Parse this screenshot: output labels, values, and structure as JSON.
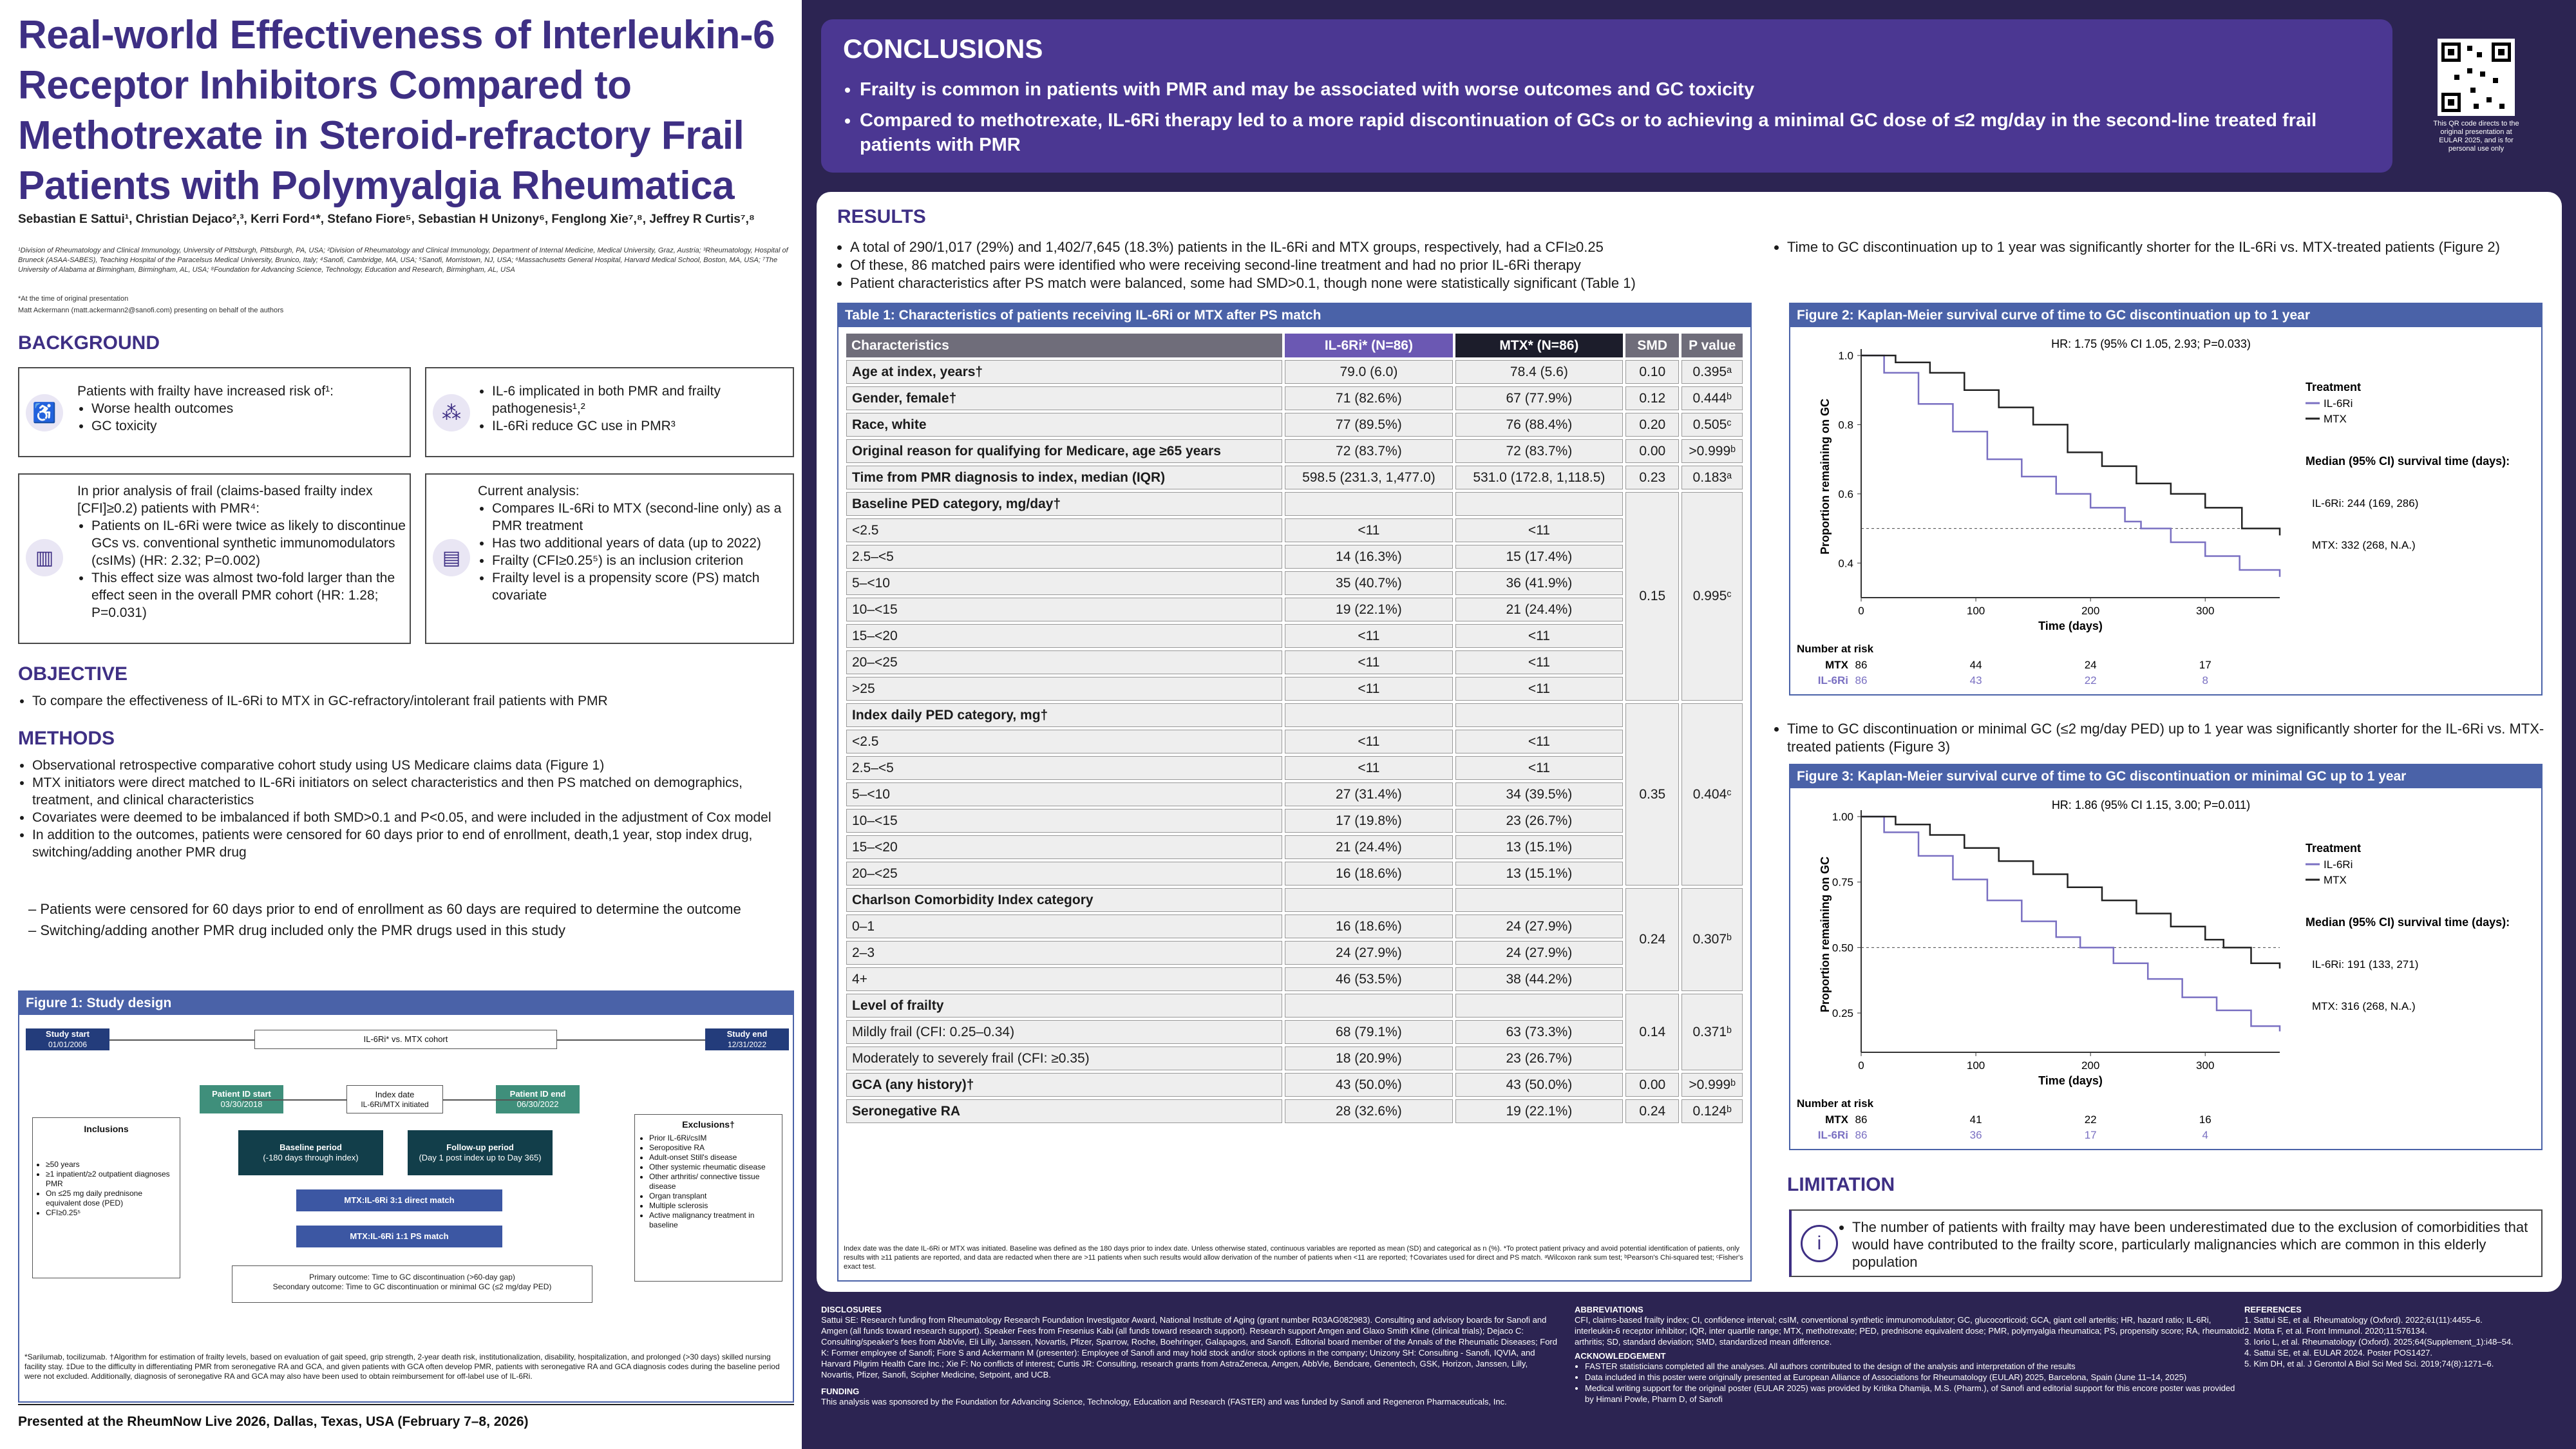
{
  "poster": {
    "title": "Real-world Effectiveness of Interleukin-6 Receptor Inhibitors Compared to Methotrexate in Steroid-refractory Frail Patients with Polymyalgia Rheumatica",
    "authors": "Sebastian E Sattui¹, Christian Dejaco²,³, Kerri Ford⁴*, Stefano Fiore⁵, Sebastian H Unizony⁶, Fenglong Xie⁷,⁸, Jeffrey R Curtis⁷,⁸",
    "affiliations": "¹Division of Rheumatology and Clinical Immunology, University of Pittsburgh, Pittsburgh, PA, USA; ²Division of Rheumatology and Clinical Immunology, Department of Internal Medicine, Medical University, Graz, Austria; ³Rheumatology, Hospital of Bruneck (ASAA-SABES), Teaching Hospital of the Paracelsus Medical University, Brunico, Italy; ⁴Sanofi, Cambridge, MA, USA; ⁵Sanofi, Morristown, NJ, USA; ⁶Massachusetts General Hospital, Harvard Medical School, Boston, MA, USA; ⁷The University of Alabama at Birmingham, Birmingham, AL, USA; ⁸Foundation for Advancing Science, Technology, Education and Research, Birmingham, AL, USA",
    "time_note": "*At the time of original presentation",
    "presenter_note": "Matt Ackermann (matt.ackermann2@sanofi.com) presenting on behalf of the authors",
    "presented_at": "Presented at the RheumNow Live 2026, Dallas, Texas, USA (February 7–8, 2026)",
    "qr_note": "This QR code directs to the original presentation at EULAR 2025, and is for personal use only"
  },
  "background": {
    "heading": "BACKGROUND",
    "box1_intro": "Patients with frailty have increased risk of¹:",
    "box1_items": [
      "Worse health outcomes",
      "GC toxicity"
    ],
    "box2_items": [
      "IL-6 implicated in both PMR and frailty pathogenesis¹,²",
      "IL-6Ri reduce GC use in PMR³"
    ],
    "box3_intro": "In prior analysis of frail (claims-based frailty index [CFI]≥0.2) patients with PMR⁴:",
    "box3_items": [
      "Patients on IL-6Ri were twice as likely to discontinue GCs vs. conventional synthetic immunomodulators (csIMs) (HR: 2.32; P=0.002)",
      "This effect size was almost two-fold larger than the effect seen in the overall PMR cohort (HR: 1.28; P=0.031)"
    ],
    "box4_intro": "Current analysis:",
    "box4_items": [
      "Compares IL-6Ri to MTX (second-line only) as a PMR treatment",
      "Has two additional years of data (up to 2022)",
      "Frailty (CFI≥0.25⁵) is an inclusion criterion",
      "Frailty level is a propensity score (PS) match covariate"
    ]
  },
  "objective": {
    "heading": "OBJECTIVE",
    "text": "To compare the effectiveness of IL-6Ri to MTX in GC-refractory/intolerant frail patients with PMR"
  },
  "methods": {
    "heading": "METHODS",
    "items": [
      "Observational retrospective comparative cohort study using US Medicare claims data (Figure 1)",
      "MTX initiators were direct matched to IL-6Ri initiators on select characteristics and then PS matched on demographics, treatment, and clinical characteristics",
      "Covariates were deemed to be imbalanced if both SMD>0.1 and P<0.05, and were included in the adjustment of Cox model",
      "In addition to the outcomes, patients were censored for 60 days prior to end of enrollment, death,1 year, stop index drug, switching/adding another PMR drug"
    ],
    "subitems": [
      "Patients were censored for 60 days prior to end of enrollment as 60 days are required to determine the outcome",
      "Switching/adding another PMR drug included only the PMR drugs used in this study"
    ]
  },
  "fig1": {
    "title": "Figure 1: Study design",
    "study_start": "Study start",
    "study_start_date": "01/01/2006",
    "study_end": "Study end",
    "study_end_date": "12/31/2022",
    "cohort": "IL-6Ri* vs. MTX cohort",
    "pid_start": "Patient ID start",
    "pid_start_date": "03/30/2018",
    "pid_end": "Patient ID end",
    "pid_end_date": "06/30/2022",
    "index": "Index date",
    "index_sub": "IL-6Ri/MTX initiated",
    "baseline": "Baseline period",
    "baseline_sub": "(-180 days through index)",
    "followup": "Follow-up period",
    "followup_sub": "(Day 1 post index up to Day 365)",
    "direct": "MTX:IL-6Ri 3:1 direct match",
    "ps": "MTX:IL-6Ri 1:1 PS match",
    "incl_title": "Inclusions",
    "incl_items": [
      "≥50 years",
      "≥1 inpatient/≥2 outpatient diagnoses PMR",
      "On ≤25 mg daily prednisone equivalent dose (PED)",
      "CFI≥0.25⁵"
    ],
    "excl_title": "Exclusions†",
    "excl_items": [
      "Prior IL-6Ri/csIM",
      "Seropositive RA",
      "Adult-onset Still's disease",
      "Other systemic rheumatic disease",
      "Other arthritis/ connective tissue disease",
      "Organ transplant",
      "Multiple sclerosis",
      "Active malignancy treatment in baseline"
    ],
    "primary": "Primary outcome: Time to GC discontinuation (>60-day gap)",
    "secondary": "Secondary outcome: Time to GC discontinuation or minimal GC (≤2 mg/day PED)",
    "footnote": "*Sarilumab, tocilizumab. †Algorithm for estimation of frailty levels, based on evaluation of gait speed, grip strength, 2-year death risk, institutionalization, disability, hospitalization, and prolonged (>30 days) skilled nursing facility stay. ‡Due to the difficulty in differentiating PMR from seronegative RA and GCA, and given patients with GCA often develop PMR, patients with seronegative RA and GCA diagnosis codes during the baseline period were not excluded. Additionally, diagnosis of seronegative RA and GCA may also have been used to obtain reimbursement for off-label use of IL-6Ri."
  },
  "conclusions": {
    "heading": "CONCLUSIONS",
    "items": [
      "Frailty is common in patients with PMR and may be associated with worse outcomes and GC toxicity",
      "Compared to methotrexate, IL-6Ri therapy led to a more rapid discontinuation of GCs or to achieving a minimal GC dose of ≤2 mg/day in the second-line treated frail patients with PMR"
    ]
  },
  "results": {
    "heading": "RESULTS",
    "items": [
      "A total of 290/1,017 (29%) and 1,402/7,645 (18.3%) patients in the IL-6Ri and MTX groups, respectively, had a CFI≥0.25",
      "Of these, 86 matched pairs were identified who were receiving second-line treatment and had no prior IL-6Ri therapy",
      "Patient characteristics after PS match were balanced, some had SMD>0.1, though none were statistically significant (Table 1)"
    ],
    "fig2_bullet": "Time to GC discontinuation up to 1 year was significantly shorter for the IL-6Ri vs. MTX-treated patients (Figure 2)",
    "fig3_bullet": "Time to GC discontinuation or minimal GC (≤2 mg/day PED) up to 1 year was significantly shorter for the IL-6Ri vs. MTX-treated patients (Figure 3)"
  },
  "table1": {
    "title": "Table 1: Characteristics of patients receiving IL-6Ri or MTX after PS match",
    "headers": [
      "Characteristics",
      "IL-6Ri* (N=86)",
      "MTX* (N=86)",
      "SMD",
      "P value"
    ],
    "footnote": "Index date was the date IL-6Ri or MTX was initiated. Baseline was defined as the 180 days prior to index date. Unless otherwise stated, continuous variables are reported as mean (SD) and categorical as n (%). *To protect patient privacy and avoid potential identification of patients, only results with ≥11 patients are reported, and data are redacted when there are >11 patients when such results would allow derivation of the number of patients when <11 are reported; †Covariates used for direct and PS match. ᵃWilcoxon rank sum test; ᵇPearson's Chi-squared test; ᶜFisher's exact test.",
    "rows": [
      {
        "label": "Age at index, years†",
        "a": "79.0 (6.0)",
        "b": "78.4 (5.6)",
        "smd": "0.10",
        "p": "0.395ᵃ"
      },
      {
        "label": "Gender, female†",
        "a": "71 (82.6%)",
        "b": "67 (77.9%)",
        "smd": "0.12",
        "p": "0.444ᵇ"
      },
      {
        "label": "Race, white",
        "a": "77 (89.5%)",
        "b": "76 (88.4%)",
        "smd": "0.20",
        "p": "0.505ᶜ"
      },
      {
        "label": "Original reason for qualifying for Medicare, age ≥65 years",
        "a": "72 (83.7%)",
        "b": "72 (83.7%)",
        "smd": "0.00",
        "p": ">0.999ᵇ"
      },
      {
        "label": "Time from PMR diagnosis to index, median (IQR)",
        "a": "598.5 (231.3, 1,477.0)",
        "b": "531.0 (172.8, 1,118.5)",
        "smd": "0.23",
        "p": "0.183ᵃ"
      }
    ],
    "ped_title": "Baseline PED category, mg/day†",
    "ped_rows": [
      {
        "label": "<2.5",
        "a": "<11",
        "b": "<11"
      },
      {
        "label": "2.5–<5",
        "a": "14 (16.3%)",
        "b": "15 (17.4%)"
      },
      {
        "label": "5–<10",
        "a": "35 (40.7%)",
        "b": "36 (41.9%)"
      },
      {
        "label": "10–<15",
        "a": "19 (22.1%)",
        "b": "21 (24.4%)"
      },
      {
        "label": "15–<20",
        "a": "<11",
        "b": "<11"
      },
      {
        "label": "20–<25",
        "a": "<11",
        "b": "<11"
      },
      {
        "label": ">25",
        "a": "<11",
        "b": "<11"
      }
    ],
    "ped_smd": "0.15",
    "ped_p": "0.995ᶜ",
    "idx_title": "Index daily PED category, mg†",
    "idx_rows": [
      {
        "label": "<2.5",
        "a": "<11",
        "b": "<11"
      },
      {
        "label": "2.5–<5",
        "a": "<11",
        "b": "<11"
      },
      {
        "label": "5–<10",
        "a": "27 (31.4%)",
        "b": "34 (39.5%)"
      },
      {
        "label": "10–<15",
        "a": "17 (19.8%)",
        "b": "23 (26.7%)"
      },
      {
        "label": "15–<20",
        "a": "21 (24.4%)",
        "b": "13 (15.1%)"
      },
      {
        "label": "20–<25",
        "a": "16 (18.6%)",
        "b": "13 (15.1%)"
      }
    ],
    "idx_smd": "0.35",
    "idx_p": "0.404ᶜ",
    "cci_title": "Charlson Comorbidity Index category",
    "cci_rows": [
      {
        "label": "0–1",
        "a": "16 (18.6%)",
        "b": "24 (27.9%)"
      },
      {
        "label": "2–3",
        "a": "24 (27.9%)",
        "b": "24 (27.9%)"
      },
      {
        "label": "4+",
        "a": "46 (53.5%)",
        "b": "38 (44.2%)"
      }
    ],
    "cci_smd": "0.24",
    "cci_p": "0.307ᵇ",
    "frail_title": "Level of frailty",
    "frail_rows": [
      {
        "label": "Mildly frail (CFI: 0.25–0.34)",
        "a": "68 (79.1%)",
        "b": "63 (73.3%)"
      },
      {
        "label": "Moderately to severely frail (CFI: ≥0.35)",
        "a": "18 (20.9%)",
        "b": "23 (26.7%)"
      }
    ],
    "frail_smd": "0.14",
    "frail_p": "0.371ᵇ",
    "end_rows": [
      {
        "label": "GCA (any history)†",
        "a": "43 (50.0%)",
        "b": "43 (50.0%)",
        "smd": "0.00",
        "p": ">0.999ᵇ"
      },
      {
        "label": "Seronegative RA",
        "a": "28 (32.6%)",
        "b": "19 (22.1%)",
        "smd": "0.24",
        "p": "0.124ᵇ"
      }
    ]
  },
  "chart_data": [
    {
      "type": "line",
      "title": "Figure 2: Kaplan-Meier survival curve of time to GC discontinuation up to 1 year",
      "hr": "HR: 1.75 (95% CI 1.05, 2.93; P=0.033)",
      "xlabel": "Time (days)",
      "ylabel": "Proportion remaining on GC",
      "xlim": [
        0,
        365
      ],
      "ylim": [
        0.3,
        1.0
      ],
      "xticks": [
        "0",
        "100",
        "200",
        "300"
      ],
      "yticks": [
        "1.0",
        "0.8",
        "0.6",
        "0.4"
      ],
      "legend_title": "Treatment",
      "legend": [
        "IL-6Ri",
        "MTX"
      ],
      "median_title": "Median (95% CI) survival time (days):",
      "median_il6": "IL-6Ri: 244 (169, 286)",
      "median_mtx": "MTX: 332 (268, N.A.)",
      "series": [
        {
          "name": "IL-6Ri",
          "x": [
            0,
            20,
            50,
            80,
            110,
            140,
            170,
            200,
            230,
            244,
            270,
            300,
            330,
            365
          ],
          "values": [
            1.0,
            0.95,
            0.86,
            0.78,
            0.7,
            0.65,
            0.6,
            0.56,
            0.52,
            0.5,
            0.46,
            0.42,
            0.38,
            0.36
          ]
        },
        {
          "name": "MTX",
          "x": [
            0,
            30,
            60,
            90,
            120,
            150,
            180,
            210,
            240,
            270,
            300,
            332,
            365
          ],
          "values": [
            1.0,
            0.98,
            0.95,
            0.9,
            0.85,
            0.8,
            0.72,
            0.68,
            0.63,
            0.6,
            0.56,
            0.5,
            0.48
          ]
        }
      ],
      "risk_title": "Number at risk",
      "risk_mtx": [
        "86",
        "44",
        "24",
        "17"
      ],
      "risk_il6": [
        "86",
        "43",
        "22",
        "8"
      ]
    },
    {
      "type": "line",
      "title": "Figure 3: Kaplan-Meier survival curve of time to GC discontinuation or minimal GC up to 1 year",
      "hr": "HR: 1.86 (95% CI 1.15, 3.00; P=0.011)",
      "xlabel": "Time (days)",
      "ylabel": "Proportion remaining on GC",
      "xlim": [
        0,
        365
      ],
      "ylim": [
        0.1,
        1.0
      ],
      "xticks": [
        "0",
        "100",
        "200",
        "300"
      ],
      "yticks": [
        "1.00",
        "0.75",
        "0.50",
        "0.25"
      ],
      "legend_title": "Treatment",
      "legend": [
        "IL-6Ri",
        "MTX"
      ],
      "median_title": "Median (95% CI) survival time (days):",
      "median_il6": "IL-6Ri: 191 (133, 271)",
      "median_mtx": "MTX: 316 (268, N.A.)",
      "series": [
        {
          "name": "IL-6Ri",
          "x": [
            0,
            20,
            50,
            80,
            110,
            140,
            170,
            191,
            220,
            250,
            280,
            310,
            340,
            365
          ],
          "values": [
            1.0,
            0.94,
            0.85,
            0.76,
            0.68,
            0.6,
            0.54,
            0.5,
            0.44,
            0.38,
            0.31,
            0.26,
            0.2,
            0.18
          ]
        },
        {
          "name": "MTX",
          "x": [
            0,
            30,
            60,
            90,
            120,
            150,
            180,
            210,
            240,
            270,
            300,
            316,
            340,
            365
          ],
          "values": [
            1.0,
            0.97,
            0.93,
            0.88,
            0.83,
            0.78,
            0.73,
            0.68,
            0.63,
            0.58,
            0.53,
            0.5,
            0.44,
            0.42
          ]
        }
      ],
      "risk_title": "Number at risk",
      "risk_mtx": [
        "86",
        "41",
        "22",
        "16"
      ],
      "risk_il6": [
        "86",
        "36",
        "17",
        "4"
      ]
    }
  ],
  "limitation": {
    "heading": "LIMITATION",
    "text": "The number of patients with frailty may have been underestimated due to the exclusion of comorbidities that would have contributed to the frailty score, particularly malignancies which are common in this elderly population"
  },
  "footer": {
    "disclosures_h": "DISCLOSURES",
    "disclosures": "Sattui SE: Research funding from Rheumatology Research Foundation Investigator Award, National Institute of Aging (grant number R03AG082983). Consulting and advisory boards for Sanofi and Amgen (all funds toward research support). Speaker Fees from Fresenius Kabi (all funds toward research support). Research support Amgen and Glaxo Smith Kline (clinical trials); Dejaco C: Consulting/speaker's fees from AbbVie, Eli Lilly, Janssen, Novartis, Pfizer, Sparrow, Roche, Boehringer, Galapagos, and Sanofi. Editorial board member of the Annals of the Rheumatic Diseases; Ford K: Former employee of Sanofi; Fiore S and Ackermann M (presenter): Employee of Sanofi and may hold stock and/or stock options in the company; Unizony SH: Consulting - Sanofi, IQVIA, and Harvard Pilgrim Health Care Inc.; Xie F: No conflicts of interest; Curtis JR: Consulting, research grants from AstraZeneca, Amgen, AbbVie, Bendcare, Genentech, GSK, Horizon, Janssen, Lilly, Novartis, Pfizer, Sanofi, Scipher Medicine, Setpoint, and UCB.",
    "funding_h": "FUNDING",
    "funding": "This analysis was sponsored by the Foundation for Advancing Science, Technology, Education and Research (FASTER) and was funded by Sanofi and Regeneron Pharmaceuticals, Inc.",
    "abbr_h": "ABBREVIATIONS",
    "abbr": "CFI, claims-based frailty index; CI, confidence interval; csIM, conventional synthetic immunomodulator; GC, glucocorticoid; GCA, giant cell arteritis; HR, hazard ratio; IL-6Ri, interleukin-6 receptor inhibitor; IQR, inter quartile range; MTX, methotrexate; PED, prednisone equivalent dose; PMR, polymyalgia rheumatica; PS, propensity score; RA, rheumatoid arthritis; SD, standard deviation; SMD, standardized mean difference.",
    "ack_h": "ACKNOWLEDGEMENT",
    "ack": [
      "FASTER statisticians completed all the analyses. All authors contributed to the design of the analysis and interpretation of the results",
      "Data included in this poster were originally presented at European Alliance of Associations for Rheumatology (EULAR) 2025, Barcelona, Spain (June 11–14, 2025)",
      "Medical writing support for the original poster (EULAR 2025) was provided by Kritika Dhamija, M.S. (Pharm.), of Sanofi and editorial support for this encore poster was provided by Himani Powle, Pharm D, of Sanofi"
    ],
    "ref_h": "REFERENCES",
    "refs": [
      "1. Sattui SE, et al. Rheumatology (Oxford). 2022;61(11):4455–6.",
      "2. Motta F, et al. Front Immunol. 2020;11:576134.",
      "3. Iorio L, et al. Rheumatology (Oxford). 2025;64(Supplement_1):i48–54.",
      "4. Sattui SE, et al. EULAR 2024. Poster POS1427.",
      "5. Kim DH, et al. J Gerontol A Biol Sci Med Sci. 2019;74(8):1271–6."
    ]
  }
}
